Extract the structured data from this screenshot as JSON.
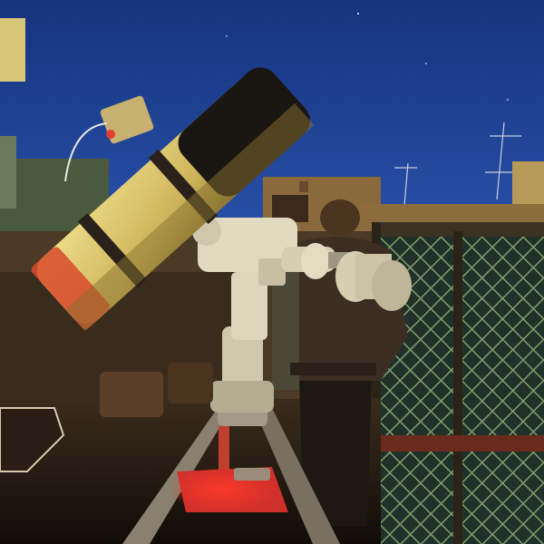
{
  "image": {
    "kind": "photograph",
    "subject": "telescope"
  },
  "colors": {
    "sky_top": "#1a3a8c",
    "sky_bottom": "#3a68c8",
    "tube": "#d9c46a",
    "tube_shadow": "#5a4a1c",
    "red_light": "#e0302a",
    "mount": "#d8d2b8",
    "fence": "#3a3a2a",
    "fence_mesh": "#7a9a6a",
    "wall": "#4a3a26",
    "ground": "#1c140e"
  }
}
